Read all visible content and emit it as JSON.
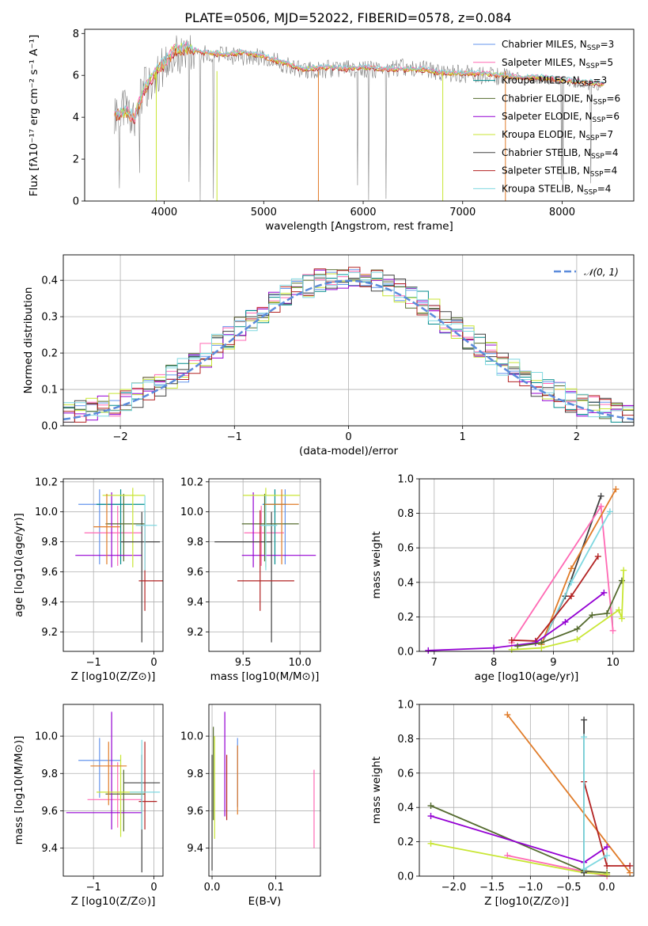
{
  "figure_title": "PLATE=0506, MJD=52022, FIBERID=0578, z=0.084",
  "colors": {
    "Chabrier MILES": "#6495ED",
    "Salpeter MILES": "#FF69B4",
    "Kroupa MILES": "#008B8B",
    "Chabrier ELODIE": "#556B2F",
    "Salpeter ELODIE": "#9400D3",
    "Kroupa ELODIE": "#C8E633",
    "Chabrier STELIB": "#404040",
    "Salpeter STELIB": "#B22222",
    "Kroupa STELIB": "#7FD8E0",
    "orange": "#E07B28",
    "gray": "#808080",
    "gaussian": "#5B8BDB"
  },
  "chart_data": [
    {
      "id": "spectrum",
      "type": "line",
      "title": "PLATE=0506, MJD=52022, FIBERID=0578, z=0.084",
      "xlabel": "wavelength [Angstrom, rest frame]",
      "ylabel": "Flux [f_λ 10^-17 erg cm^-2 s^-1 A^-1]",
      "xlim": [
        3200,
        8720
      ],
      "ylim": [
        0,
        8.2
      ],
      "xticks": [
        4000,
        5000,
        6000,
        7000,
        8000
      ],
      "yticks": [
        0,
        2,
        4,
        6,
        8
      ],
      "grid": false,
      "legend_position": "right",
      "legend": [
        "Chabrier MILES, N_SSP=3",
        "Salpeter MILES, N_SSP=5",
        "Kroupa MILES, N_SSP=3",
        "Chabrier ELODIE, N_SSP=6",
        "Salpeter ELODIE, N_SSP=6",
        "Kroupa ELODIE, N_SSP=7",
        "Chabrier STELIB, N_SSP=4",
        "Salpeter STELIB, N_SSP=4",
        "Kroupa STELIB, N_SSP=4"
      ],
      "series": [
        {
          "name": "data",
          "x": [
            3500,
            3600,
            3700,
            3800,
            3900,
            4000,
            4100,
            4200,
            4400,
            4600,
            4800,
            5000,
            5200,
            5400,
            5600,
            5800,
            6000,
            6200,
            6400,
            6600,
            6800,
            7000,
            7200,
            7400,
            7600,
            7800,
            8000,
            8200,
            8400
          ],
          "y": [
            4.2,
            4.4,
            4.0,
            5.4,
            5.8,
            6.5,
            7.0,
            7.1,
            7.0,
            6.9,
            6.9,
            6.9,
            6.5,
            6.2,
            6.3,
            6.3,
            6.3,
            6.2,
            6.4,
            6.3,
            6.1,
            6.1,
            6.0,
            5.9,
            5.9,
            5.8,
            5.7,
            5.5,
            5.5
          ]
        },
        {
          "name": "model",
          "x": [
            3500,
            3600,
            3700,
            3800,
            3900,
            4000,
            4100,
            4200,
            4400,
            4600,
            4800,
            5000,
            5200,
            5400,
            5600,
            5800,
            6000,
            6200,
            6400,
            6600,
            6800,
            7000,
            7200,
            7400,
            7600,
            7800,
            8000,
            8200,
            8400
          ],
          "y": [
            4.1,
            4.3,
            4.0,
            5.3,
            6.1,
            6.6,
            7.2,
            7.3,
            7.1,
            7.0,
            7.1,
            6.9,
            6.6,
            6.3,
            6.4,
            6.3,
            6.4,
            6.3,
            6.3,
            6.3,
            6.1,
            6.1,
            6.1,
            6.0,
            5.9,
            5.9,
            5.8,
            5.7,
            5.6
          ]
        }
      ]
    },
    {
      "id": "residual_hist",
      "type": "line",
      "xlabel": "(data-model)/error",
      "ylabel": "Normed distribution",
      "xlim": [
        -2.5,
        2.5
      ],
      "ylim": [
        0,
        0.47
      ],
      "xticks": [
        -2,
        -1,
        0,
        1,
        2
      ],
      "yticks": [
        0.0,
        0.1,
        0.2,
        0.3,
        0.4
      ],
      "grid": true,
      "legend": [
        "𝒩(0, 1)"
      ],
      "legend_position": "top-right"
    },
    {
      "id": "age_vs_Z",
      "type": "scatter",
      "xlabel": "Z [log10(Z/Z⊙)]",
      "ylabel": "age [log10(age/yr)]",
      "xlim": [
        -1.5,
        0.15
      ],
      "ylim": [
        9.07,
        10.22
      ],
      "xticks": [
        -1,
        0
      ],
      "yticks": [
        9.2,
        9.4,
        9.6,
        9.8,
        10.0,
        10.2
      ],
      "grid": true,
      "series": [
        {
          "name": "Chabrier MILES",
          "x": -0.9,
          "xerr": [
            0.35,
            0.35
          ],
          "y": 10.05,
          "yerr": [
            0.4,
            0.1
          ]
        },
        {
          "name": "Salpeter MILES",
          "x": -0.6,
          "xerr": [
            0.55,
            0.4
          ],
          "y": 9.86,
          "yerr": [
            0.22,
            0.18
          ]
        },
        {
          "name": "Kroupa MILES",
          "x": -0.55,
          "xerr": [
            0.4,
            0.4
          ],
          "y": 10.05,
          "yerr": [
            0.4,
            0.1
          ]
        },
        {
          "name": "Chabrier ELODIE",
          "x": -0.5,
          "xerr": [
            0.3,
            0.35
          ],
          "y": 9.92,
          "yerr": [
            0.25,
            0.2
          ]
        },
        {
          "name": "Salpeter ELODIE",
          "x": -0.7,
          "xerr": [
            0.6,
            0.5
          ],
          "y": 9.71,
          "yerr": [
            0.08,
            0.42
          ]
        },
        {
          "name": "Kroupa ELODIE",
          "x": -0.35,
          "xerr": [
            0.5,
            0.2
          ],
          "y": 10.11,
          "yerr": [
            0.48,
            0.05
          ]
        },
        {
          "name": "Chabrier STELIB",
          "x": -0.2,
          "xerr": [
            0.35,
            0.3
          ],
          "y": 9.8,
          "yerr": [
            0.67,
            0.2
          ]
        },
        {
          "name": "Salpeter STELIB",
          "x": -0.15,
          "xerr": [
            0.1,
            0.3
          ],
          "y": 9.54,
          "yerr": [
            0.2,
            0.47
          ]
        },
        {
          "name": "Kroupa STELIB",
          "x": -0.15,
          "xerr": [
            0.15,
            0.2
          ],
          "y": 9.91,
          "yerr": [
            0.3,
            0.2
          ]
        },
        {
          "name": "orange",
          "x": -0.78,
          "xerr": [
            0.22,
            0.22
          ],
          "y": 9.9,
          "yerr": [
            0.25,
            0.22
          ]
        }
      ]
    },
    {
      "id": "age_vs_mass",
      "type": "scatter",
      "xlabel": "mass [log10(M/M⊙)]",
      "ylabel": "",
      "xlim": [
        9.2,
        10.18
      ],
      "ylim": [
        9.07,
        10.22
      ],
      "xticks": [
        9.5,
        10.0
      ],
      "yticks": [
        9.2,
        9.4,
        9.6,
        9.8,
        10.0,
        10.2
      ],
      "grid": true,
      "series": [
        {
          "name": "Chabrier MILES",
          "x": 9.87,
          "xerr": [
            0.2,
            0.0
          ],
          "y": 10.05,
          "yerr": [
            0.4,
            0.1
          ]
        },
        {
          "name": "Salpeter MILES",
          "x": 9.66,
          "xerr": [
            0.15,
            0.2
          ],
          "y": 9.86,
          "yerr": [
            0.22,
            0.18
          ]
        },
        {
          "name": "Kroupa MILES",
          "x": 9.78,
          "xerr": [
            0.1,
            0.1
          ],
          "y": 10.05,
          "yerr": [
            0.4,
            0.1
          ]
        },
        {
          "name": "Chabrier ELODIE",
          "x": 9.69,
          "xerr": [
            0.2,
            0.3
          ],
          "y": 9.92,
          "yerr": [
            0.25,
            0.2
          ]
        },
        {
          "name": "Salpeter ELODIE",
          "x": 9.59,
          "xerr": [
            0.1,
            0.55
          ],
          "y": 9.71,
          "yerr": [
            0.08,
            0.42
          ]
        },
        {
          "name": "Kroupa ELODIE",
          "x": 9.7,
          "xerr": [
            0.2,
            0.3
          ],
          "y": 10.11,
          "yerr": [
            0.48,
            0.05
          ]
        },
        {
          "name": "Chabrier STELIB",
          "x": 9.75,
          "xerr": [
            0.5,
            0.0
          ],
          "y": 9.8,
          "yerr": [
            0.67,
            0.2
          ]
        },
        {
          "name": "Salpeter STELIB",
          "x": 9.65,
          "xerr": [
            0.2,
            0.3
          ],
          "y": 9.54,
          "yerr": [
            0.2,
            0.47
          ]
        },
        {
          "name": "Kroupa STELIB",
          "x": 9.7,
          "xerr": [
            0.05,
            0.1
          ],
          "y": 9.91,
          "yerr": [
            0.3,
            0.2
          ]
        },
        {
          "name": "orange",
          "x": 9.84,
          "xerr": [
            0.15,
            0.15
          ],
          "y": 10.05,
          "yerr": [
            0.4,
            0.1
          ]
        }
      ]
    },
    {
      "id": "massweight_vs_age",
      "type": "line",
      "xlabel": "age [log10(age/yr)]",
      "ylabel": "mass weight",
      "xlim": [
        6.75,
        10.35
      ],
      "ylim": [
        0,
        1.0
      ],
      "xticks": [
        7,
        8,
        9,
        10
      ],
      "yticks": [
        0.0,
        0.2,
        0.4,
        0.6,
        0.8,
        1.0
      ],
      "grid": true,
      "series": [
        {
          "name": "Chabrier STELIB",
          "x": [
            8.8,
            9.2,
            9.8
          ],
          "y": [
            0.04,
            0.32,
            0.9
          ]
        },
        {
          "name": "Salpeter MILES",
          "x": [
            8.3,
            9.8,
            10.0
          ],
          "y": [
            0.05,
            0.84,
            0.12
          ]
        },
        {
          "name": "Kroupa STELIB",
          "x": [
            8.8,
            9.3,
            9.95
          ],
          "y": [
            0.04,
            0.4,
            0.81
          ]
        },
        {
          "name": "orange",
          "x": [
            8.8,
            9.3,
            10.05
          ],
          "y": [
            0.04,
            0.48,
            0.94
          ]
        },
        {
          "name": "Salpeter STELIB",
          "x": [
            8.3,
            8.7,
            9.3,
            9.75
          ],
          "y": [
            0.065,
            0.06,
            0.32,
            0.55
          ]
        },
        {
          "name": "Salpeter ELODIE",
          "x": [
            6.9,
            8.0,
            8.7,
            9.2,
            9.85
          ],
          "y": [
            0.005,
            0.02,
            0.05,
            0.17,
            0.34
          ]
        },
        {
          "name": "Chabrier ELODIE",
          "x": [
            8.4,
            8.8,
            9.4,
            9.65,
            9.9,
            10.15
          ],
          "y": [
            0.03,
            0.05,
            0.13,
            0.21,
            0.22,
            0.41
          ]
        },
        {
          "name": "Kroupa ELODIE",
          "x": [
            8.3,
            8.8,
            9.4,
            10.1,
            10.15,
            10.18
          ],
          "y": [
            0.01,
            0.02,
            0.07,
            0.24,
            0.19,
            0.47
          ]
        }
      ]
    },
    {
      "id": "mass_vs_Z",
      "type": "scatter",
      "xlabel": "Z [log10(Z/Z⊙)]",
      "ylabel": "mass [log10(M/M⊙)]",
      "xlim": [
        -1.5,
        0.15
      ],
      "ylim": [
        9.25,
        10.17
      ],
      "xticks": [
        -1,
        0
      ],
      "yticks": [
        9.4,
        9.6,
        9.8,
        10.0
      ],
      "grid": true,
      "series": [
        {
          "name": "Chabrier MILES",
          "x": -0.9,
          "xerr": [
            0.35,
            0.35
          ],
          "y": 9.87,
          "yerr": [
            0.2,
            0.12
          ]
        },
        {
          "name": "Salpeter MILES",
          "x": -0.6,
          "xerr": [
            0.5,
            0.4
          ],
          "y": 9.66,
          "yerr": [
            0.15,
            0.2
          ]
        },
        {
          "name": "Chabrier ELODIE",
          "x": -0.5,
          "xerr": [
            0.3,
            0.35
          ],
          "y": 9.69,
          "yerr": [
            0.2,
            0.13
          ]
        },
        {
          "name": "Salpeter ELODIE",
          "x": -0.7,
          "xerr": [
            0.75,
            0.5
          ],
          "y": 9.59,
          "yerr": [
            0.09,
            0.54
          ]
        },
        {
          "name": "Kroupa ELODIE",
          "x": -0.55,
          "xerr": [
            0.4,
            0.4
          ],
          "y": 9.7,
          "yerr": [
            0.24,
            0.2
          ]
        },
        {
          "name": "Chabrier STELIB",
          "x": -0.2,
          "xerr": [
            0.3,
            0.3
          ],
          "y": 9.75,
          "yerr": [
            0.48,
            0.15
          ]
        },
        {
          "name": "Salpeter STELIB",
          "x": -0.15,
          "xerr": [
            0.1,
            0.2
          ],
          "y": 9.65,
          "yerr": [
            0.15,
            0.32
          ]
        },
        {
          "name": "Kroupa STELIB",
          "x": -0.2,
          "xerr": [
            0.2,
            0.3
          ],
          "y": 9.7,
          "yerr": [
            0.2,
            0.28
          ]
        },
        {
          "name": "orange",
          "x": -0.75,
          "xerr": [
            0.3,
            0.3
          ],
          "y": 9.84,
          "yerr": [
            0.21,
            0.13
          ]
        }
      ]
    },
    {
      "id": "mass_vs_EBV",
      "type": "scatter",
      "xlabel": "E(B-V)",
      "ylabel": "",
      "xlim": [
        -0.005,
        0.17
      ],
      "ylim": [
        9.25,
        10.17
      ],
      "xticks": [
        0.0,
        0.1
      ],
      "yticks": [
        9.4,
        9.6,
        9.8,
        10.0
      ],
      "grid": true,
      "series": [
        {
          "name": "Chabrier STELIB",
          "x": 0.0,
          "y": 9.6,
          "yerr": [
            0.32,
            0.3
          ]
        },
        {
          "name": "Chabrier ELODIE",
          "x": 0.002,
          "y": 9.75,
          "yerr": [
            0.2,
            0.3
          ]
        },
        {
          "name": "Kroupa ELODIE",
          "x": 0.004,
          "y": 9.85,
          "yerr": [
            0.4,
            0.15
          ]
        },
        {
          "name": "Salpeter ELODIE",
          "x": 0.02,
          "y": 9.85,
          "yerr": [
            0.28,
            0.28
          ]
        },
        {
          "name": "Salpeter STELIB",
          "x": 0.023,
          "y": 9.75,
          "yerr": [
            0.2,
            0.15
          ]
        },
        {
          "name": "Chabrier MILES",
          "x": 0.04,
          "y": 9.8,
          "yerr": [
            0.18,
            0.19
          ]
        },
        {
          "name": "orange",
          "x": 0.04,
          "y": 9.75,
          "yerr": [
            0.17,
            0.2
          ]
        },
        {
          "name": "Salpeter MILES",
          "x": 0.16,
          "y": 9.6,
          "yerr": [
            0.2,
            0.22
          ]
        }
      ]
    },
    {
      "id": "massweight_vs_Z",
      "type": "line",
      "xlabel": "Z [log10(Z/Z⊙)]",
      "ylabel": "mass weight",
      "xlim": [
        -2.45,
        0.35
      ],
      "ylim": [
        0,
        1.0
      ],
      "xticks": [
        -2.0,
        -1.5,
        -1.0,
        -0.5,
        0.0
      ],
      "yticks": [
        0.0,
        0.2,
        0.4,
        0.6,
        0.8,
        1.0
      ],
      "grid": true,
      "series": [
        {
          "name": "orange",
          "x": [
            -1.3,
            0.3
          ],
          "y": [
            0.94,
            0.02
          ]
        },
        {
          "name": "Salpeter MILES",
          "x": [
            -1.3,
            0.0
          ],
          "y": [
            0.12,
            0.0
          ]
        },
        {
          "name": "Chabrier ELODIE",
          "x": [
            -2.3,
            -0.3,
            0.0
          ],
          "y": [
            0.41,
            0.03,
            0.02
          ]
        },
        {
          "name": "Salpeter ELODIE",
          "x": [
            -2.3,
            -0.3,
            0.0
          ],
          "y": [
            0.35,
            0.08,
            0.17
          ]
        },
        {
          "name": "Kroupa ELODIE",
          "x": [
            -2.3,
            -0.3,
            0.0
          ],
          "y": [
            0.19,
            0.02,
            0.01
          ]
        },
        {
          "name": "Chabrier STELIB",
          "x": [
            -0.3,
            -0.3
          ],
          "y": [
            0.91,
            0.02
          ]
        },
        {
          "name": "Salpeter STELIB",
          "x": [
            -0.3,
            0.0,
            0.3
          ],
          "y": [
            0.55,
            0.06,
            0.06
          ]
        },
        {
          "name": "Kroupa STELIB",
          "x": [
            -0.3,
            -0.3,
            0.0
          ],
          "y": [
            0.81,
            0.04,
            0.12
          ]
        }
      ]
    }
  ]
}
